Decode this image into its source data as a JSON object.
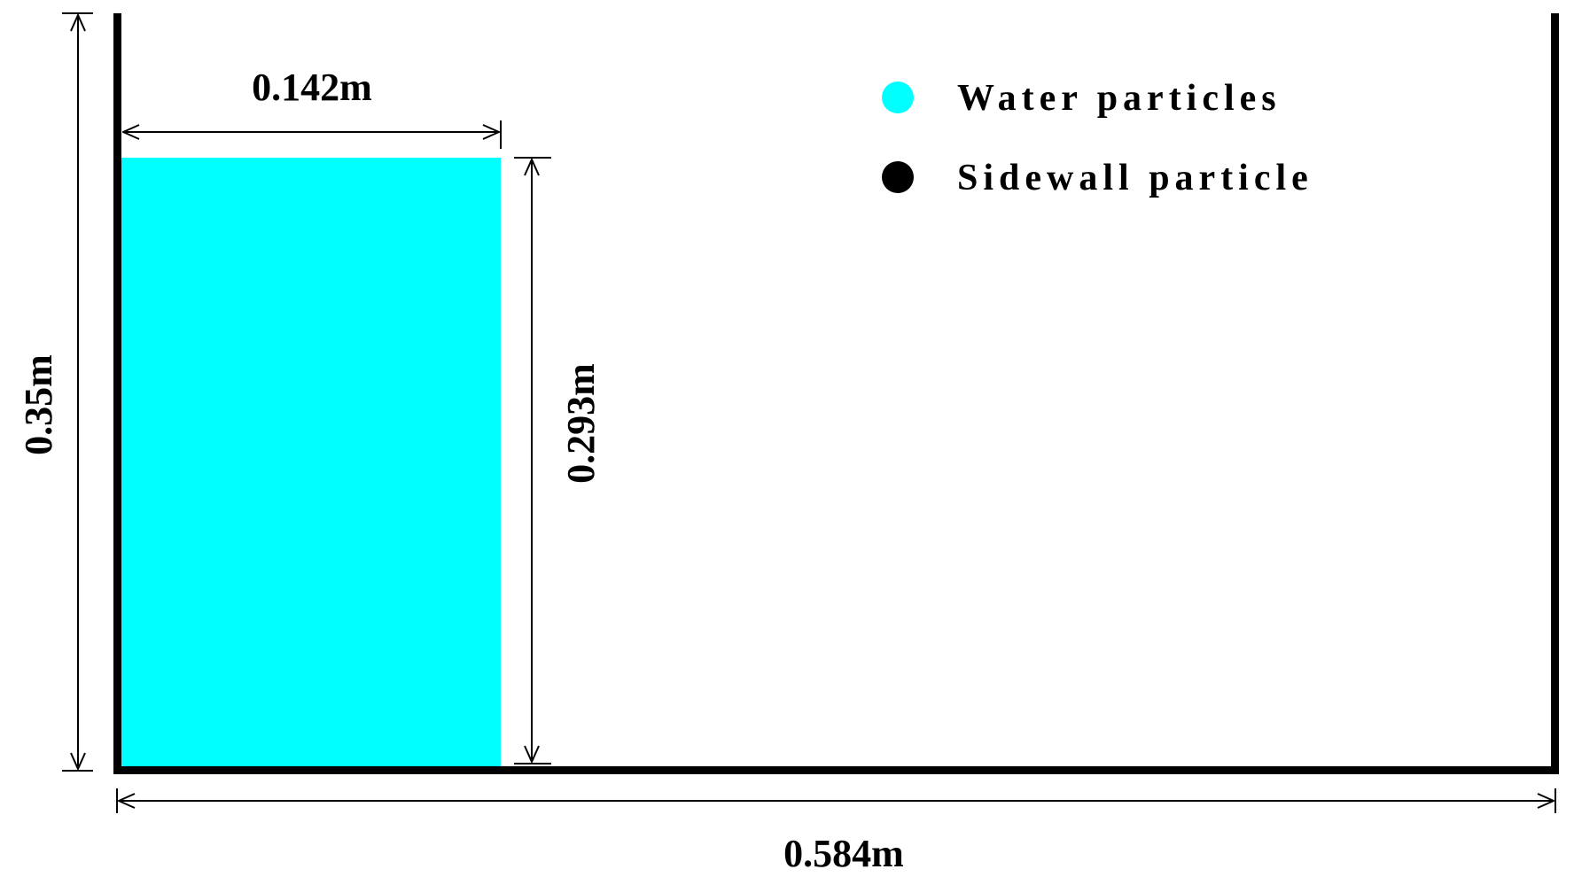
{
  "dimensions": {
    "tank_height": "0.35m",
    "tank_length": "0.584m",
    "water_width": "0.142m",
    "water_height": "0.293m"
  },
  "legend": {
    "items": [
      {
        "label": "Water particles",
        "color": "#00ffff"
      },
      {
        "label": "Sidewall particle",
        "color": "#000000"
      }
    ]
  },
  "colors": {
    "water": "#00ffff",
    "wall": "#000000",
    "background": "#ffffff"
  }
}
